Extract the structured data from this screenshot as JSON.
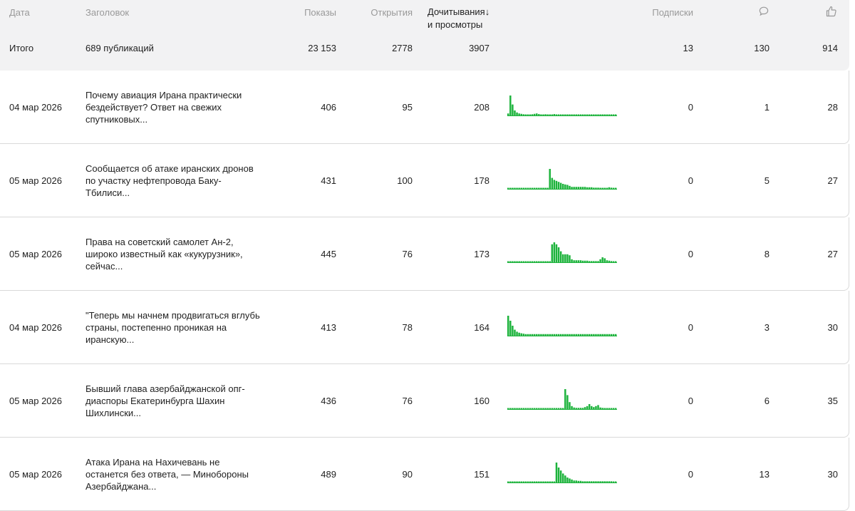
{
  "header": {
    "date": "Дата",
    "title": "Заголовок",
    "views": "Показы",
    "opens": "Открытия",
    "reads_line1": "Дочитывания",
    "reads_line2": "и просмотры",
    "sort_arrow": "↓",
    "subs": "Подписки",
    "comments_icon": "comment-icon",
    "likes_icon": "thumbs-up-icon"
  },
  "totals": {
    "label": "Итого",
    "publications": "689 публикаций",
    "views": "23 153",
    "opens": "2778",
    "reads": "3907",
    "subs": "13",
    "comments": "130",
    "likes": "914"
  },
  "colors": {
    "spark": "#1db33c",
    "header_bg": "#f2f2f3",
    "border": "#d9d9d9"
  },
  "rows": [
    {
      "date": "04 мар 2026",
      "title": "Почему авиация Ирана практически бездействует? Ответ на свежих спутниковых...",
      "views": "406",
      "opens": "95",
      "reads": "208",
      "subs": "0",
      "comments": "1",
      "likes": "28",
      "spark": [
        0.1,
        1,
        0.55,
        0.25,
        0.15,
        0.1,
        0.08,
        0.06,
        0.05,
        0.05,
        0.05,
        0.06,
        0.08,
        0.1,
        0.07,
        0.05,
        0.05,
        0.06,
        0.05,
        0.05,
        0.05,
        0.07,
        0.05,
        0.05,
        0.05,
        0.05,
        0.05,
        0.05,
        0.05,
        0.05,
        0.05,
        0.05,
        0.05,
        0.05,
        0.05,
        0.05,
        0.05,
        0.05,
        0.05,
        0.05,
        0.05,
        0.05,
        0.05,
        0.05,
        0.05,
        0.05,
        0.05,
        0.05,
        0.05,
        0.05
      ]
    },
    {
      "date": "05 мар 2026",
      "title": "Сообщается об атаке иранских дронов по участку нефтепровода Баку-Тбилиси...",
      "views": "431",
      "opens": "100",
      "reads": "178",
      "subs": "0",
      "comments": "5",
      "likes": "27",
      "spark": [
        0.05,
        0.05,
        0.05,
        0.05,
        0.05,
        0.05,
        0.05,
        0.05,
        0.05,
        0.05,
        0.05,
        0.05,
        0.05,
        0.05,
        0.05,
        0.05,
        0.05,
        0.05,
        0.05,
        1,
        0.55,
        0.45,
        0.4,
        0.35,
        0.3,
        0.25,
        0.22,
        0.2,
        0.15,
        0.1,
        0.1,
        0.1,
        0.1,
        0.1,
        0.1,
        0.1,
        0.08,
        0.08,
        0.08,
        0.06,
        0.06,
        0.06,
        0.05,
        0.05,
        0.05,
        0.05,
        0.08,
        0.06,
        0.05,
        0.05
      ]
    },
    {
      "date": "05 мар 2026",
      "title": "Права на советский самолет Ан-2, широко известный как «кукурузник», сейчас...",
      "views": "445",
      "opens": "76",
      "reads": "173",
      "subs": "0",
      "comments": "8",
      "likes": "27",
      "spark": [
        0.05,
        0.05,
        0.05,
        0.05,
        0.05,
        0.05,
        0.05,
        0.05,
        0.05,
        0.05,
        0.05,
        0.05,
        0.05,
        0.05,
        0.05,
        0.05,
        0.05,
        0.05,
        0.05,
        0.05,
        0.9,
        1,
        0.9,
        0.75,
        0.55,
        0.4,
        0.4,
        0.4,
        0.35,
        0.15,
        0.1,
        0.1,
        0.1,
        0.1,
        0.08,
        0.08,
        0.08,
        0.06,
        0.06,
        0.06,
        0.06,
        0.06,
        0.15,
        0.25,
        0.2,
        0.1,
        0.08,
        0.06,
        0.05,
        0.05
      ]
    },
    {
      "date": "04 мар 2026",
      "title": "\"Теперь мы начнем продвигаться вглубь страны, постепенно проникая на иранскую...",
      "views": "413",
      "opens": "78",
      "reads": "164",
      "subs": "0",
      "comments": "3",
      "likes": "30",
      "spark": [
        1,
        0.75,
        0.5,
        0.3,
        0.2,
        0.15,
        0.12,
        0.1,
        0.08,
        0.08,
        0.08,
        0.08,
        0.08,
        0.08,
        0.08,
        0.08,
        0.08,
        0.08,
        0.08,
        0.08,
        0.08,
        0.08,
        0.08,
        0.08,
        0.08,
        0.08,
        0.08,
        0.08,
        0.08,
        0.08,
        0.08,
        0.08,
        0.08,
        0.08,
        0.08,
        0.08,
        0.08,
        0.08,
        0.08,
        0.08,
        0.08,
        0.08,
        0.08,
        0.08,
        0.08,
        0.08,
        0.08,
        0.08,
        0.08,
        0.08
      ]
    },
    {
      "date": "05 мар 2026",
      "title": "Бывший глава азербайджанской опг-диаспоры Екатеринбурга Шахин Шихлински...",
      "views": "436",
      "opens": "76",
      "reads": "160",
      "subs": "0",
      "comments": "6",
      "likes": "35",
      "spark": [
        0.05,
        0.05,
        0.05,
        0.05,
        0.05,
        0.05,
        0.05,
        0.05,
        0.05,
        0.05,
        0.05,
        0.05,
        0.05,
        0.05,
        0.05,
        0.05,
        0.05,
        0.05,
        0.05,
        0.05,
        0.05,
        0.05,
        0.05,
        0.05,
        0.05,
        0.05,
        1,
        0.7,
        0.35,
        0.15,
        0.08,
        0.06,
        0.06,
        0.06,
        0.06,
        0.1,
        0.15,
        0.25,
        0.15,
        0.1,
        0.15,
        0.2,
        0.08,
        0.06,
        0.05,
        0.05,
        0.05,
        0.05,
        0.05,
        0.05
      ]
    },
    {
      "date": "05 мар 2026",
      "title": "Атака Ирана на Нахичевань не останется без ответа, — Минобороны Азербайджана...",
      "views": "489",
      "opens": "90",
      "reads": "151",
      "subs": "0",
      "comments": "13",
      "likes": "30",
      "spark": [
        0.05,
        0.05,
        0.05,
        0.05,
        0.05,
        0.05,
        0.05,
        0.05,
        0.05,
        0.05,
        0.05,
        0.05,
        0.05,
        0.05,
        0.05,
        0.05,
        0.05,
        0.05,
        0.05,
        0.05,
        0.05,
        0.05,
        1,
        0.75,
        0.6,
        0.45,
        0.35,
        0.25,
        0.2,
        0.15,
        0.1,
        0.1,
        0.08,
        0.08,
        0.06,
        0.06,
        0.06,
        0.06,
        0.06,
        0.06,
        0.06,
        0.06,
        0.06,
        0.06,
        0.06,
        0.06,
        0.06,
        0.06,
        0.05,
        0.05
      ]
    }
  ]
}
